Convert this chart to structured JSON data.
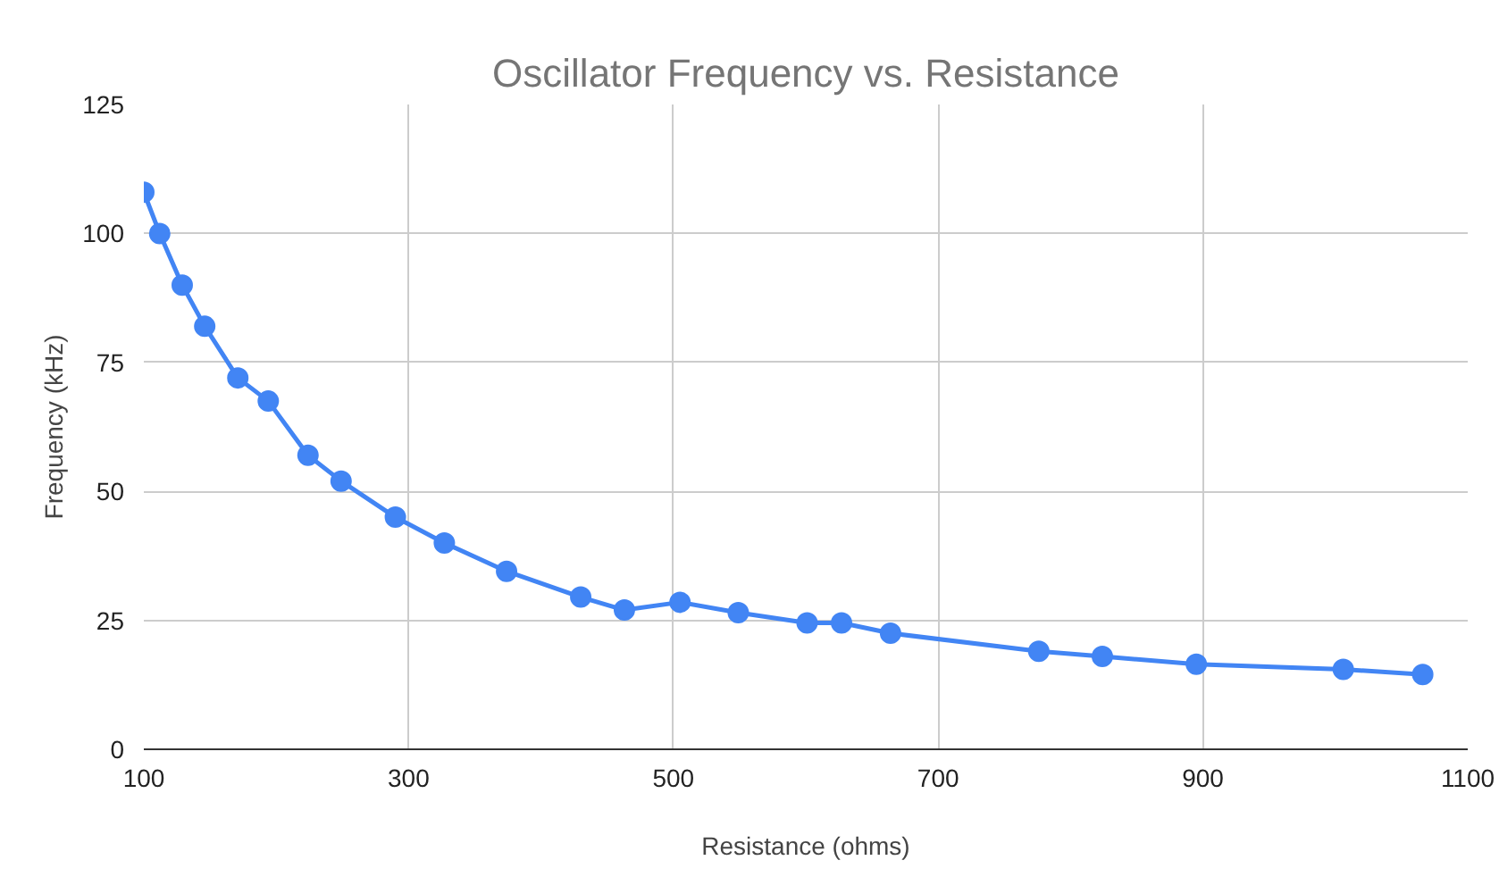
{
  "chart_data": {
    "type": "line",
    "title": "Oscillator Frequency vs. Resistance",
    "xlabel": "Resistance (ohms)",
    "ylabel": "Frequency (kHz)",
    "x": [
      100,
      112,
      129,
      146,
      171,
      194,
      224,
      249,
      290,
      327,
      374,
      430,
      463,
      505,
      549,
      601,
      627,
      664,
      776,
      824,
      895,
      1006,
      1066
    ],
    "series": [
      {
        "color": "#4285f4",
        "values": [
          108,
          100,
          90,
          82,
          72,
          67.5,
          57,
          52,
          45,
          40,
          34.5,
          29.5,
          27,
          28.5,
          26.5,
          24.5,
          24.5,
          22.5,
          19,
          18,
          16.5,
          15.5,
          14.5
        ]
      }
    ],
    "xlim": [
      100,
      1100
    ],
    "xticks": [
      100,
      300,
      500,
      700,
      900,
      1100
    ],
    "ylim": [
      0,
      125
    ],
    "yticks": [
      0,
      25,
      50,
      75,
      100,
      125
    ],
    "grid": true,
    "marker": "circle",
    "line_style": "solid"
  }
}
